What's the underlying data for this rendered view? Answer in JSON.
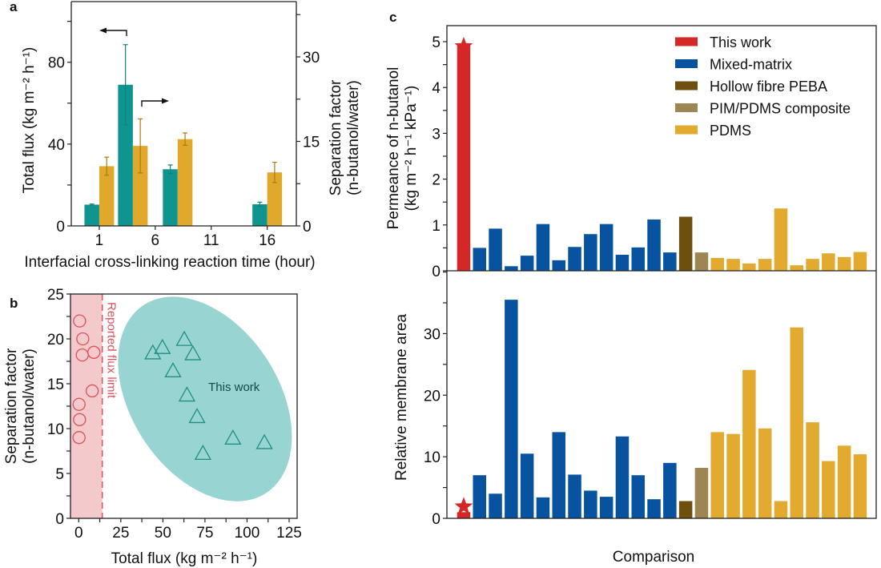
{
  "figure": {
    "panel_labels": [
      "a",
      "b",
      "c"
    ]
  },
  "colors": {
    "teal": "#0f9590",
    "gold": "#e0a92c",
    "teal_err": "#137f7d",
    "gold_err": "#a97a17",
    "red": "#d62728",
    "blue": "#0753a0",
    "dark_brown": "#6e4f0e",
    "khaki": "#9d8651",
    "pdms": "#e2aa2f",
    "pink_fill": "#f3c9cb",
    "pink_line": "#d9525c",
    "ellipse_fill": "#97d4d2",
    "triangle_stroke": "#1e8f82"
  },
  "chart_data": [
    {
      "panel": "a",
      "type": "bar",
      "title": "",
      "xlabel": "Interfacial cross-linking reaction time (hour)",
      "ylabel": "Total flux (kg m⁻² h⁻¹)",
      "y2label_line1": "Separation factor",
      "y2label_line2": "(n-butanol/water)",
      "x": [
        1,
        4,
        8,
        16
      ],
      "xticks": [
        1,
        6,
        11,
        16
      ],
      "xlim": [
        -1.5,
        18.6
      ],
      "ylim": [
        0,
        110
      ],
      "yticks": [
        0,
        40,
        80
      ],
      "y2lim": [
        0,
        40
      ],
      "y2ticks": [
        0,
        15,
        30
      ],
      "series": [
        {
          "name": "Total flux",
          "axis": "left",
          "values": [
            10.4,
            69.0,
            27.7,
            10.6
          ],
          "errors": [
            0.3,
            19.6,
            2.1,
            1.0
          ]
        },
        {
          "name": "Separation factor",
          "axis": "right",
          "values": [
            10.6,
            14.2,
            15.4,
            9.5
          ],
          "errors": [
            1.6,
            4.8,
            1.1,
            1.8
          ]
        }
      ],
      "annotations": [
        "left-arrow over flux bars",
        "right-arrow over separation-factor bars"
      ]
    },
    {
      "panel": "b",
      "type": "scatter",
      "title": "",
      "xlabel": "Total flux (kg m⁻² h⁻¹)",
      "ylabel_line1": "Separation factor",
      "ylabel_line2": "(n-butanol/water)",
      "xlim": [
        -4.8,
        130
      ],
      "ylim": [
        0,
        25
      ],
      "xticks": [
        0,
        25,
        50,
        75,
        100,
        125
      ],
      "yticks": [
        0,
        5,
        10,
        15,
        20,
        25
      ],
      "reported_flux_limit": 14,
      "reported_flux_limit_label": "Reported flux limit",
      "series": [
        {
          "name": "Reported",
          "marker": "circle",
          "points": [
            [
              0.5,
              22.0
            ],
            [
              2.4,
              20.0
            ],
            [
              2.1,
              18.2
            ],
            [
              9.0,
              18.5
            ],
            [
              8.0,
              14.2
            ],
            [
              0.2,
              12.7
            ],
            [
              0.5,
              11.0
            ],
            [
              0.2,
              9.0
            ]
          ]
        },
        {
          "name": "This work",
          "marker": "triangle",
          "points": [
            [
              44.0,
              18.4
            ],
            [
              49.7,
              19.0
            ],
            [
              62.7,
              19.9
            ],
            [
              67.8,
              18.3
            ],
            [
              56.0,
              16.4
            ],
            [
              64.3,
              13.7
            ],
            [
              70.3,
              11.3
            ],
            [
              91.6,
              8.9
            ],
            [
              110.3,
              8.4
            ],
            [
              73.8,
              7.2
            ]
          ]
        }
      ],
      "annotation": "This work"
    },
    {
      "panel": "c",
      "type": "bar",
      "title": "",
      "xlabel": "Comparison",
      "legend_position": "top-right",
      "legend": [
        "This work",
        "Mixed-matrix",
        "Hollow fibre PEBA",
        "PIM/PDMS composite",
        "PDMS"
      ],
      "categories": [
        "This work",
        "Mixed-matrix",
        "Mixed-matrix",
        "Mixed-matrix",
        "Mixed-matrix",
        "Mixed-matrix",
        "Mixed-matrix",
        "Mixed-matrix",
        "Mixed-matrix",
        "Mixed-matrix",
        "Mixed-matrix",
        "Mixed-matrix",
        "Mixed-matrix",
        "Mixed-matrix",
        "Hollow fibre PEBA",
        "PIM/PDMS composite",
        "PDMS",
        "PDMS",
        "PDMS",
        "PDMS",
        "PDMS",
        "PDMS",
        "PDMS",
        "PDMS",
        "PDMS",
        "PDMS"
      ],
      "subplots": [
        {
          "name": "permeance",
          "ylabel_line1": "Permeance of n-butanol",
          "ylabel_line2": "(kg m⁻² h⁻¹ kPa⁻¹)",
          "ylim": [
            0,
            5.35
          ],
          "yticks": [
            0,
            1,
            2,
            3,
            4,
            5
          ],
          "values": [
            4.95,
            0.5,
            0.92,
            0.1,
            0.33,
            1.02,
            0.23,
            0.52,
            0.8,
            1.02,
            0.35,
            0.51,
            1.12,
            0.4,
            1.18,
            0.4,
            0.28,
            0.26,
            0.16,
            0.26,
            1.36,
            0.12,
            0.26,
            0.38,
            0.3,
            0.41
          ]
        },
        {
          "name": "area",
          "ylabel": "Relative membrane area",
          "ylim": [
            0,
            40.2
          ],
          "yticks": [
            0,
            10,
            20,
            30
          ],
          "values": [
            1.0,
            7.0,
            4.0,
            35.5,
            10.5,
            3.4,
            14.0,
            7.1,
            4.5,
            3.5,
            13.3,
            7.0,
            3.1,
            9.0,
            2.8,
            8.2,
            14.0,
            13.7,
            24.1,
            14.6,
            2.8,
            31.0,
            15.6,
            9.3,
            11.8,
            10.4
          ]
        }
      ]
    }
  ]
}
